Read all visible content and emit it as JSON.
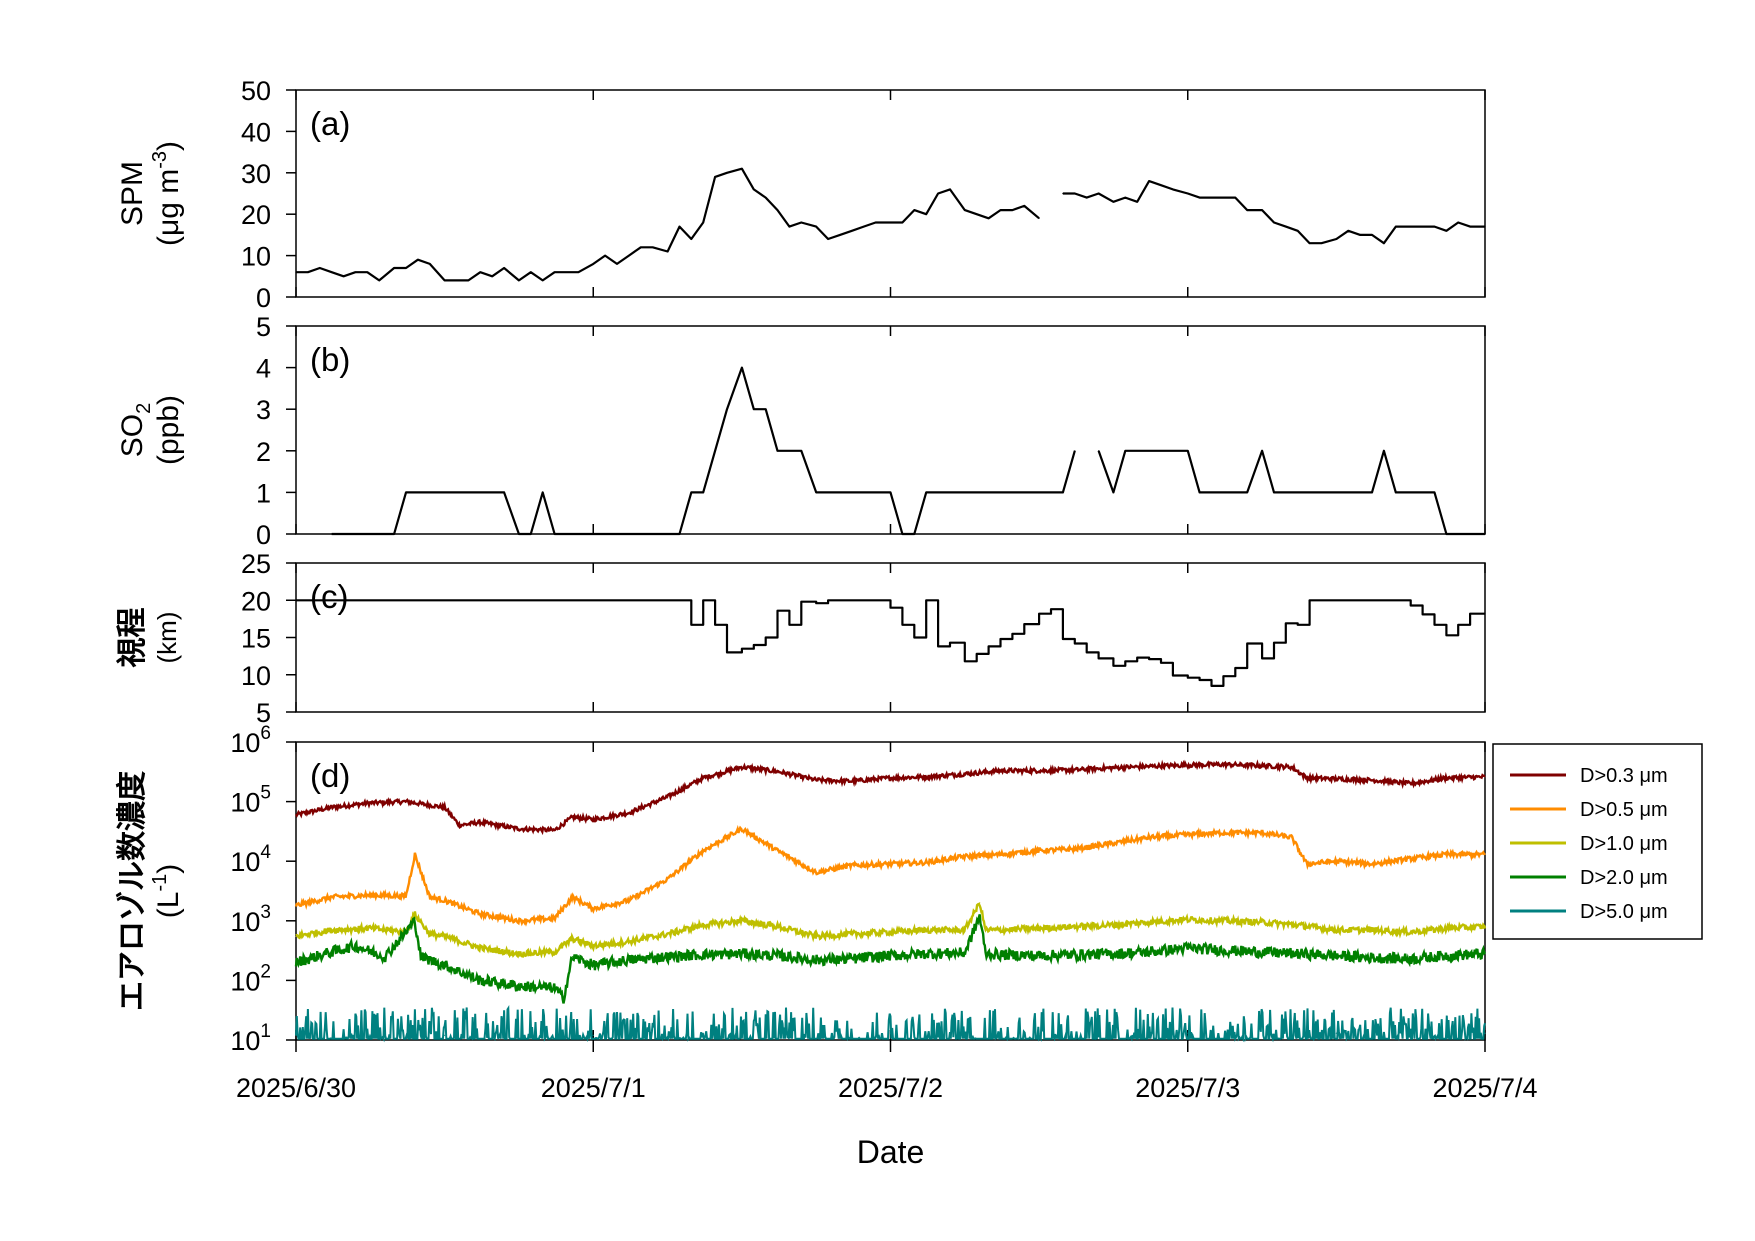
{
  "chart_data": [
    {
      "type": "line",
      "panel_label": "(a)",
      "ylabel": "SPM (μg m-3)",
      "ylim": [
        0,
        50
      ],
      "yticks": [
        "0",
        "10",
        "20",
        "30",
        "40",
        "50"
      ],
      "series": [
        {
          "color": "#000000",
          "x": [
            0.0,
            0.04,
            0.08,
            0.12,
            0.16,
            0.2,
            0.24,
            0.28,
            0.33,
            0.37,
            0.41,
            0.45,
            0.5,
            0.54,
            0.58,
            0.62,
            0.66,
            0.7,
            0.75,
            0.79,
            0.83,
            0.87,
            0.91,
            0.95,
            1.0,
            1.04,
            1.08,
            1.12,
            1.16,
            1.2,
            1.25,
            1.29,
            1.33,
            1.37,
            1.41,
            1.45,
            1.5,
            1.54,
            1.58,
            1.62,
            1.66,
            1.7,
            1.75,
            1.79,
            1.83,
            1.87,
            1.91,
            1.95,
            2.0,
            2.04,
            2.08,
            2.12,
            2.16,
            2.2,
            2.25,
            2.29,
            2.33,
            2.37,
            2.41,
            2.45,
            2.5,
            2.54,
            2.58,
            2.62,
            2.66,
            2.7,
            2.75,
            2.79,
            2.83,
            2.87,
            2.91,
            2.95,
            3.0,
            3.04,
            3.08,
            3.12,
            3.16,
            3.2,
            3.25,
            3.29,
            3.33,
            3.37,
            3.41,
            3.45,
            3.5,
            3.54,
            3.58,
            3.62,
            3.66,
            3.7,
            3.75,
            3.79,
            3.83,
            3.87,
            3.91,
            3.95,
            4.0
          ],
          "y": [
            6,
            6,
            7,
            6,
            5,
            6,
            6,
            4,
            7,
            7,
            9,
            8,
            4,
            4,
            4,
            6,
            5,
            7,
            4,
            6,
            4,
            6,
            6,
            6,
            8,
            10,
            8,
            10,
            12,
            12,
            11,
            17,
            14,
            18,
            29,
            30,
            31,
            26,
            24,
            21,
            17,
            18,
            17,
            14,
            15,
            16,
            17,
            18,
            18,
            18,
            21,
            20,
            25,
            26,
            21,
            20,
            19,
            21,
            21,
            22,
            19,
            null,
            25,
            25,
            24,
            25,
            23,
            24,
            23,
            28,
            27,
            26,
            25,
            24,
            24,
            24,
            24,
            21,
            21,
            18,
            17,
            16,
            13,
            13,
            14,
            16,
            15,
            15,
            13,
            17,
            17,
            17,
            17,
            16,
            18,
            17,
            17
          ]
        }
      ]
    },
    {
      "type": "line",
      "panel_label": "(b)",
      "ylabel": "SO2 (ppb)",
      "ylim": [
        0,
        5
      ],
      "yticks": [
        "0",
        "1",
        "2",
        "3",
        "4",
        "5"
      ],
      "series": [
        {
          "color": "#000000",
          "x": [
            0.12,
            0.33,
            0.37,
            0.7,
            0.75,
            0.79,
            0.83,
            0.87,
            0.91,
            1.29,
            1.33,
            1.37,
            1.45,
            1.5,
            1.54,
            1.58,
            1.62,
            1.66,
            1.7,
            1.75,
            1.79,
            1.83,
            1.87,
            1.91,
            1.95,
            2.0,
            2.04,
            2.08,
            2.12,
            2.16,
            2.2,
            2.25,
            2.29,
            2.33,
            2.37,
            2.41,
            2.45,
            2.5,
            2.54,
            2.58,
            2.62,
            2.66,
            2.7,
            2.75,
            2.79,
            2.83,
            2.87,
            2.91,
            2.95,
            3.0,
            3.04,
            3.08,
            3.12,
            3.16,
            3.2,
            3.25,
            3.29,
            3.33,
            3.37,
            3.41,
            3.45,
            3.5,
            3.54,
            3.58,
            3.62,
            3.66,
            3.7,
            3.75,
            3.79,
            3.83,
            3.87,
            3.91,
            3.95,
            4.0
          ],
          "y": [
            0,
            0,
            1,
            1,
            0,
            0,
            1,
            0,
            0,
            0,
            1,
            1,
            3,
            4,
            3,
            3,
            2,
            2,
            2,
            1,
            1,
            1,
            1,
            1,
            1,
            1,
            0,
            0,
            1,
            1,
            1,
            1,
            1,
            1,
            1,
            1,
            1,
            1,
            1,
            1,
            2,
            null,
            2,
            1,
            2,
            2,
            2,
            2,
            2,
            2,
            1,
            1,
            1,
            1,
            1,
            2,
            1,
            1,
            1,
            1,
            1,
            1,
            1,
            1,
            1,
            2,
            1,
            1,
            1,
            1,
            0,
            0,
            0,
            0
          ]
        }
      ]
    },
    {
      "type": "line",
      "step": true,
      "panel_label": "(c)",
      "ylabel": "視程 (km)",
      "ylim": [
        5,
        25
      ],
      "yticks": [
        "5",
        "10",
        "15",
        "20",
        "25"
      ],
      "series": [
        {
          "color": "#000000",
          "x": [
            0.0,
            1.33,
            1.37,
            1.41,
            1.45,
            1.5,
            1.54,
            1.58,
            1.62,
            1.66,
            1.7,
            1.75,
            1.79,
            1.83,
            1.87,
            1.91,
            1.95,
            2.0,
            2.04,
            2.08,
            2.12,
            2.16,
            2.2,
            2.25,
            2.29,
            2.33,
            2.37,
            2.41,
            2.45,
            2.5,
            2.54,
            2.58,
            2.62,
            2.66,
            2.7,
            2.75,
            2.79,
            2.83,
            2.87,
            2.91,
            2.95,
            3.0,
            3.04,
            3.08,
            3.12,
            3.16,
            3.2,
            3.25,
            3.29,
            3.33,
            3.37,
            3.41,
            3.45,
            3.5,
            3.54,
            3.58,
            3.62,
            3.66,
            3.7,
            3.75,
            3.79,
            3.83,
            3.87,
            3.91,
            3.95,
            4.0
          ],
          "y": [
            20,
            16.7,
            20,
            16.7,
            13,
            13.5,
            14,
            15,
            18.6,
            16.7,
            19.8,
            19.6,
            20,
            20,
            20,
            20,
            20,
            19,
            16.7,
            15,
            20,
            13.8,
            14.3,
            11.8,
            12.8,
            13.8,
            14.8,
            15.5,
            16.8,
            18.2,
            18.8,
            14.8,
            14.2,
            13,
            12.2,
            11.2,
            11.8,
            12.3,
            12.1,
            11.6,
            9.9,
            9.6,
            9.3,
            8.5,
            9.8,
            10.9,
            14.2,
            12.2,
            14.3,
            16.9,
            16.7,
            20,
            20,
            20,
            20,
            20,
            20,
            20,
            20,
            19.3,
            18.1,
            16.7,
            15.3,
            16.7,
            18.2,
            18.2
          ]
        }
      ]
    },
    {
      "type": "line",
      "panel_label": "(d)",
      "ylabel": "エアロゾル数濃度 (L-1)",
      "yscale": "log",
      "ylim": [
        10,
        1000000
      ],
      "yticks": [
        "10^1",
        "10^2",
        "10^3",
        "10^4",
        "10^5",
        "10^6"
      ],
      "xlabel": "Date",
      "xticks": [
        "2025/6/30",
        "2025/7/1",
        "2025/7/2",
        "2025/7/3",
        "2025/7/4"
      ],
      "legend_position": "right",
      "series": [
        {
          "name": "D>0.3 μm",
          "color": "#7f0000",
          "x": [
            0.0,
            0.12,
            0.25,
            0.37,
            0.5,
            0.55,
            0.62,
            0.75,
            0.87,
            0.93,
            1.0,
            1.12,
            1.25,
            1.37,
            1.5,
            1.62,
            1.75,
            1.87,
            2.0,
            2.12,
            2.25,
            2.37,
            2.5,
            2.62,
            2.75,
            2.87,
            3.0,
            3.12,
            3.25,
            3.35,
            3.4,
            3.5,
            3.62,
            3.75,
            3.87,
            4.0
          ],
          "y": [
            60000,
            80000,
            95000,
            100000,
            80000,
            40000,
            45000,
            35000,
            33000,
            55000,
            50000,
            65000,
            120000,
            250000,
            380000,
            320000,
            230000,
            220000,
            250000,
            260000,
            290000,
            330000,
            330000,
            340000,
            370000,
            390000,
            410000,
            420000,
            400000,
            380000,
            250000,
            240000,
            230000,
            200000,
            250000,
            260000
          ]
        },
        {
          "name": "D>0.5 μm",
          "color": "#ff8c00",
          "x": [
            0.0,
            0.12,
            0.25,
            0.37,
            0.4,
            0.45,
            0.5,
            0.62,
            0.75,
            0.87,
            0.93,
            1.0,
            1.12,
            1.25,
            1.37,
            1.5,
            1.62,
            1.75,
            1.87,
            2.0,
            2.12,
            2.25,
            2.37,
            2.5,
            2.62,
            2.75,
            2.87,
            3.0,
            3.12,
            3.25,
            3.35,
            3.4,
            3.5,
            3.62,
            3.75,
            3.87,
            4.0
          ],
          "y": [
            1800,
            2500,
            2700,
            2600,
            13000,
            2500,
            2200,
            1300,
            1000,
            1100,
            2500,
            1600,
            2200,
            5000,
            15000,
            35000,
            15000,
            6500,
            8500,
            9000,
            9500,
            12000,
            13000,
            15000,
            16000,
            20000,
            25000,
            28000,
            30000,
            30000,
            25000,
            9000,
            10000,
            9000,
            11000,
            13000,
            13000
          ]
        },
        {
          "name": "D>1.0 μm",
          "color": "#bfbf00",
          "x": [
            0.0,
            0.12,
            0.25,
            0.37,
            0.4,
            0.45,
            0.5,
            0.62,
            0.75,
            0.87,
            0.93,
            1.0,
            1.12,
            1.25,
            1.37,
            1.5,
            1.62,
            1.75,
            1.87,
            2.0,
            2.12,
            2.25,
            2.3,
            2.32,
            2.37,
            2.5,
            2.62,
            2.75,
            2.87,
            3.0,
            3.12,
            3.25,
            3.37,
            3.5,
            3.62,
            3.75,
            3.87,
            4.0
          ],
          "y": [
            550,
            700,
            750,
            650,
            1300,
            600,
            550,
            350,
            280,
            300,
            500,
            380,
            450,
            600,
            850,
            1000,
            800,
            550,
            600,
            650,
            700,
            700,
            2000,
            700,
            700,
            750,
            800,
            850,
            950,
            1050,
            1000,
            950,
            850,
            700,
            700,
            650,
            750,
            800
          ]
        },
        {
          "name": "D>2.0 μm",
          "color": "#008000",
          "x": [
            0.0,
            0.12,
            0.2,
            0.3,
            0.4,
            0.42,
            0.45,
            0.5,
            0.62,
            0.75,
            0.87,
            0.9,
            0.93,
            1.0,
            1.12,
            1.25,
            1.37,
            1.5,
            1.62,
            1.75,
            1.87,
            2.0,
            2.12,
            2.25,
            2.3,
            2.32,
            2.37,
            2.5,
            2.62,
            2.75,
            2.87,
            3.0,
            3.12,
            3.25,
            3.37,
            3.5,
            3.62,
            3.75,
            3.87,
            4.0
          ],
          "y": [
            200,
            300,
            380,
            250,
            1000,
            250,
            220,
            180,
            100,
            80,
            75,
            50,
            250,
            180,
            220,
            250,
            270,
            280,
            260,
            220,
            230,
            260,
            280,
            290,
            1200,
            280,
            270,
            260,
            270,
            280,
            300,
            350,
            320,
            300,
            280,
            260,
            240,
            230,
            260,
            280
          ]
        },
        {
          "name": "D>5.0 μm",
          "color": "#008080",
          "x": [
            0.0,
            0.5,
            1.0,
            1.5,
            2.0,
            2.5,
            3.0,
            3.5,
            4.0
          ],
          "y": [
            12,
            12,
            12,
            13,
            13,
            13,
            13,
            13,
            13
          ]
        }
      ]
    }
  ]
}
